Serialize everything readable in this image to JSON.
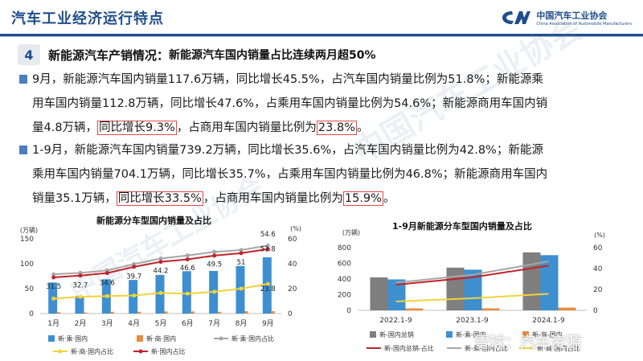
{
  "header": {
    "title": "汽车工业经济运行特点",
    "logo_cn": "中国汽车工业协会",
    "logo_en": "China Association of Automobile Manufacturers"
  },
  "section": {
    "number": "4",
    "label": "新能源汽车产销情况：",
    "subtitle": "新能源汽车国内销量占比连续两月超50%"
  },
  "paragraphs": {
    "p1": {
      "line1": "9月，新能源汽车国内销量117.6万辆，同比增长45.5%，占汽车国内销量比例为51.8%；新能源乘",
      "line2": "用车国内销量112.8万辆，同比增长47.6%，占乘用车国内销量比例为54.6%；新能源商用车国内销",
      "line3_a": "量4.8万辆，",
      "line3_hl1": "同比增长9.3%",
      "line3_b": "，占商用车国内销量比例为",
      "line3_hl2": "23.8%",
      "line3_c": "。"
    },
    "p2": {
      "line1": "1-9月，新能源汽车国内销量739.2万辆，同比增长35.6%，占汽车国内销量比例为42.8%；新能源",
      "line2": "乘用车国内销量704.1万辆，同比增长35.7%，占乘用车国内销量比例为46.8%；新能源商用车国内",
      "line3_a": "销量35.1万辆，",
      "line3_hl1": "同比增长33.5%",
      "line3_b": "，占商用车国内销量比例为",
      "line3_hl2": "15.9%",
      "line3_c": "。"
    }
  },
  "colors": {
    "primary": "#1f4e8c",
    "bar_blue": "#3e8fd0",
    "bar_orange": "#e98c3c",
    "gray_line": "#a6a6a6",
    "yellow_line": "#f2d23a",
    "red_line": "#c0232a",
    "bar_gray": "#7f7f7f",
    "highlight": "#e04848"
  },
  "chart_data": [
    {
      "type": "bar",
      "title": "新能源分车型国内销量及占比",
      "ylabel": "(万辆)",
      "y2label": "(%)",
      "ylim": [
        0,
        150
      ],
      "y2lim": [
        0,
        60
      ],
      "yticks": [
        "0",
        "50",
        "100",
        "150"
      ],
      "y2ticks": [
        "0",
        "20",
        "40",
        "60"
      ],
      "categories": [
        "1月",
        "2月",
        "3月",
        "4月",
        "5月",
        "6月",
        "7月",
        "8月",
        "9月"
      ],
      "series": [
        {
          "name": "新·乘·国内",
          "kind": "bar",
          "axis": "left",
          "values": [
            62.3,
            35.5,
            68.8,
            67.5,
            77.5,
            85.0,
            85.5,
            95.5,
            112.8
          ]
        },
        {
          "name": "新·商·国内",
          "kind": "bar",
          "axis": "left",
          "values": [
            2.8,
            2.0,
            3.6,
            3.7,
            4.2,
            4.3,
            3.6,
            4.6,
            4.8
          ]
        },
        {
          "name": "新·乘·国内占比",
          "kind": "line",
          "axis": "right",
          "values": [
            31.5,
            32.7,
            34.6,
            39.7,
            44.2,
            46.6,
            49.5,
            51.0,
            54.6
          ]
        },
        {
          "name": "新·商·国内占比",
          "kind": "line",
          "axis": "right",
          "values": [
            12.0,
            13.5,
            14.0,
            14.5,
            16.5,
            16.0,
            17.5,
            20.0,
            23.8
          ]
        },
        {
          "name": "新·国内占比",
          "kind": "line",
          "axis": "right",
          "values": [
            29.0,
            30.5,
            32.5,
            37.5,
            41.5,
            43.5,
            46.5,
            48.5,
            51.8
          ]
        }
      ],
      "data_labels": [
        "31.5",
        "32.7",
        "34.6",
        "39.7",
        "44.2",
        "46.6",
        "49.5",
        "51",
        "54.6"
      ],
      "extra_labels": {
        "sep_total": "51.8",
        "sep_commercial": "23.8"
      }
    },
    {
      "type": "bar",
      "title": "1-9月新能源分车型国内销量及占比",
      "ylabel": "(万辆)",
      "y2label": "(%)",
      "ylim": [
        0,
        800
      ],
      "y2lim": [
        0,
        60
      ],
      "yticks": [
        "0",
        "200",
        "400",
        "600",
        "800"
      ],
      "y2ticks": [
        "0",
        "20",
        "40",
        "60"
      ],
      "categories": [
        "2022.1-9",
        "2023.1-9",
        "2024.1-9"
      ],
      "series": [
        {
          "name": "新-国内总销",
          "kind": "bar",
          "axis": "left",
          "values": [
            420,
            545,
            739.2
          ]
        },
        {
          "name": "新-乘-国内",
          "kind": "bar",
          "axis": "left",
          "values": [
            395,
            519,
            704.1
          ]
        },
        {
          "name": "新-商-国内",
          "kind": "bar",
          "axis": "left",
          "values": [
            25,
            26,
            35.1
          ]
        },
        {
          "name": "新-国内总销-占比",
          "kind": "line",
          "axis": "right",
          "values": [
            24.5,
            31.5,
            42.8
          ]
        },
        {
          "name": "新-乘-国内占比",
          "kind": "line",
          "axis": "right",
          "values": [
            26.5,
            34.0,
            46.8
          ]
        },
        {
          "name": "新-商-国内占比",
          "kind": "line",
          "axis": "right",
          "values": [
            8.5,
            11.5,
            15.9
          ]
        }
      ]
    }
  ],
  "watermark": {
    "text1": "中国汽车工业协会",
    "text2": "中国汽车工业协会",
    "overlay": "雪球：汽车资源"
  }
}
